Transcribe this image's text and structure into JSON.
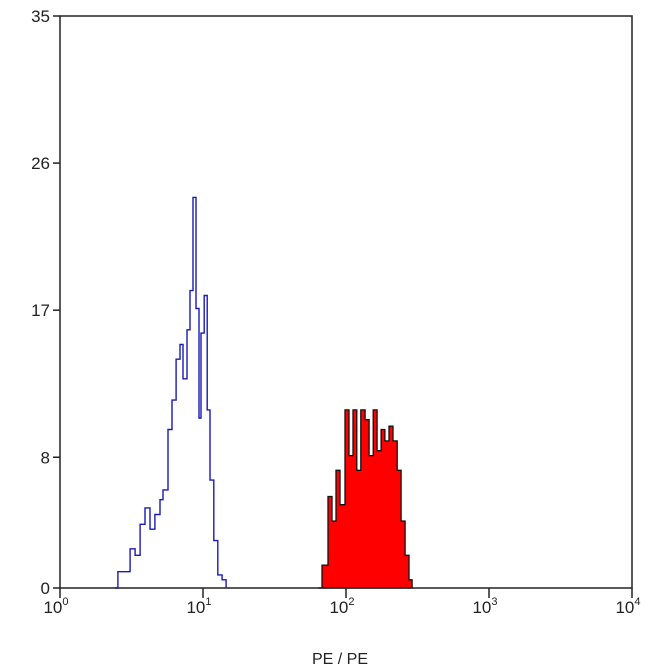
{
  "chart_data": {
    "type": "area",
    "xlabel": "PE / PE",
    "ylabel": "",
    "xscale": "log",
    "xlim": [
      1,
      10000
    ],
    "ylim": [
      0,
      35
    ],
    "grid": false,
    "x_ticks": [
      {
        "base": "10",
        "exp": "0",
        "value": 1
      },
      {
        "base": "10",
        "exp": "1",
        "value": 10
      },
      {
        "base": "10",
        "exp": "2",
        "value": 100
      },
      {
        "base": "10",
        "exp": "3",
        "value": 1000
      },
      {
        "base": "10",
        "exp": "4",
        "value": 10000
      }
    ],
    "y_ticks": [
      "0",
      "8",
      "17",
      "26",
      "35"
    ],
    "series": [
      {
        "style": "outline",
        "color": "#1a1ab4",
        "x": [
          2.42,
          2.54,
          2.85,
          3.09,
          3.35,
          3.63,
          3.93,
          4.26,
          4.61,
          5.0,
          5.25,
          5.69,
          6.07,
          6.48,
          6.91,
          7.25,
          7.73,
          8.11,
          8.51,
          8.93,
          9.38,
          9.68,
          10.2,
          10.7,
          11.2,
          11.9,
          12.7,
          13.6,
          14.5
        ],
        "y": [
          0,
          1,
          1,
          2.4,
          2,
          3.9,
          4.9,
          3.6,
          4.5,
          5.4,
          6,
          9.7,
          11.5,
          14,
          14.9,
          12.8,
          15.8,
          18.2,
          23.9,
          17.1,
          10.4,
          15.6,
          17.9,
          10.9,
          6.6,
          2.9,
          0.8,
          0.5,
          0
        ]
      },
      {
        "style": "filled",
        "color": "#ff0000",
        "x": [
          63.7,
          68,
          74.8,
          79.8,
          85.1,
          90.8,
          98.4,
          105,
          112,
          119,
          127,
          136,
          145,
          155,
          165,
          176,
          187,
          200,
          213,
          228,
          243,
          259,
          276,
          290
        ],
        "y": [
          0,
          1.4,
          5.6,
          4.1,
          7.2,
          5.1,
          10.9,
          8.1,
          10.9,
          7.2,
          10.9,
          10.3,
          8.1,
          10.9,
          8.4,
          9.7,
          9,
          9.9,
          9,
          7.2,
          4.1,
          2,
          0.5,
          0
        ]
      }
    ]
  }
}
